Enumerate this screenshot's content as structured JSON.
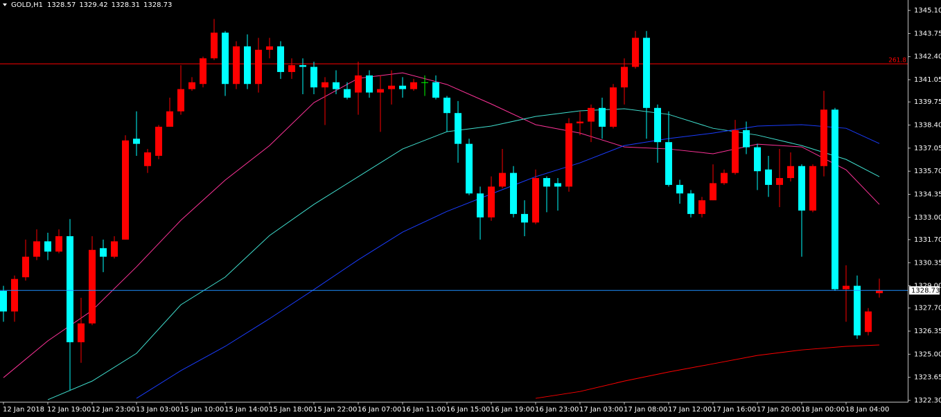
{
  "chart_data": {
    "type": "candlestick",
    "symbol": "GOLD,H1",
    "categories": [
      "12 Jan 2018",
      null,
      null,
      null,
      "12 Jan 19:00",
      null,
      null,
      null,
      "12 Jan 23:00",
      null,
      null,
      null,
      "13 Jan 03:00",
      null,
      null,
      null,
      "15 Jan 10:00",
      null,
      null,
      null,
      "15 Jan 14:00",
      null,
      null,
      null,
      "15 Jan 18:00",
      null,
      null,
      null,
      "15 Jan 22:00",
      null,
      null,
      null,
      "16 Jan 07:00",
      null,
      null,
      null,
      "16 Jan 11:00",
      null,
      null,
      null,
      "16 Jan 15:00",
      null,
      null,
      null,
      "16 Jan 19:00",
      null,
      null,
      null,
      "16 Jan 23:00",
      null,
      null,
      null,
      "17 Jan 03:00",
      null,
      null,
      null,
      "17 Jan 08:00",
      null,
      null,
      null,
      "17 Jan 12:00",
      null,
      null,
      null,
      "17 Jan 16:00",
      null,
      null,
      null,
      "17 Jan 20:00",
      null,
      null,
      null,
      "18 Jan 00:00",
      null,
      null,
      null,
      "18 Jan 04:00",
      null,
      null,
      null
    ],
    "open": [
      1328.7,
      1327.5,
      1329.5,
      1330.7,
      1331.6,
      1331.0,
      1331.9,
      1325.7,
      1326.8,
      1331.2,
      1330.7,
      1331.7,
      1337.6,
      1336.0,
      1336.6,
      1338.3,
      1339.2,
      1340.5,
      1340.8,
      1342.3,
      1343.8,
      1340.8,
      1343.0,
      1340.8,
      1342.8,
      1343.0,
      1341.5,
      1341.9,
      1341.8,
      1340.6,
      1340.9,
      1340.5,
      1340.3,
      1341.3,
      1340.3,
      1340.5,
      1340.7,
      1340.5,
      1340.9,
      1340.9,
      1340.0,
      1339.1,
      1337.3,
      1334.4,
      1333.0,
      1334.8,
      1335.6,
      1333.2,
      1332.7,
      1335.3,
      1335.0,
      1334.8,
      1338.5,
      1338.6,
      1339.4,
      1338.3,
      1340.6,
      1341.8,
      1343.5,
      1339.4,
      1337.4,
      1334.9,
      1334.4,
      1333.2,
      1334.0,
      1335.0,
      1335.6,
      1338.1,
      1337.1,
      1335.8,
      1334.9,
      1335.3,
      1336.0,
      1333.4,
      1336.0,
      1339.3,
      1328.8,
      1329.0,
      1326.3,
      1328.57
    ],
    "high": [
      1329.0,
      1329.6,
      1331.7,
      1332.3,
      1332.1,
      1332.3,
      1332.9,
      1328.3,
      1331.9,
      1331.7,
      1331.9,
      1337.8,
      1339.2,
      1337.0,
      1338.4,
      1340.0,
      1341.9,
      1341.2,
      1342.4,
      1344.6,
      1343.9,
      1343.3,
      1343.7,
      1343.5,
      1343.5,
      1343.3,
      1342.3,
      1342.3,
      1342.1,
      1341.2,
      1341.6,
      1340.9,
      1342.1,
      1341.6,
      1341.3,
      1341.6,
      1341.2,
      1341.1,
      1341.3,
      1341.3,
      1340.1,
      1339.8,
      1337.6,
      1334.8,
      1335.4,
      1337.0,
      1336.0,
      1334.0,
      1335.8,
      1335.4,
      1335.3,
      1338.8,
      1339.2,
      1339.6,
      1340.0,
      1340.8,
      1342.3,
      1343.9,
      1343.9,
      1339.6,
      1339.2,
      1335.2,
      1334.6,
      1334.2,
      1336.1,
      1335.8,
      1338.7,
      1338.6,
      1337.3,
      1336.6,
      1337.0,
      1336.8,
      1336.1,
      1336.1,
      1340.4,
      1339.4,
      1330.2,
      1329.6,
      1327.7,
      1329.42
    ],
    "low": [
      1326.9,
      1326.9,
      1329.3,
      1330.5,
      1330.5,
      1330.9,
      1322.9,
      1324.5,
      1326.7,
      1329.8,
      1330.6,
      1331.7,
      1336.6,
      1335.6,
      1336.4,
      1338.3,
      1339.0,
      1340.4,
      1340.6,
      1342.2,
      1340.1,
      1340.5,
      1340.5,
      1340.3,
      1342.3,
      1341.1,
      1341.1,
      1340.2,
      1340.2,
      1338.4,
      1340.2,
      1339.9,
      1339.0,
      1340.0,
      1338.0,
      1339.6,
      1340.0,
      1340.4,
      1340.1,
      1339.9,
      1338.0,
      1336.2,
      1334.3,
      1331.7,
      1332.8,
      1334.7,
      1333.0,
      1331.9,
      1332.6,
      1333.3,
      1333.4,
      1334.5,
      1337.8,
      1337.4,
      1337.6,
      1338.2,
      1339.6,
      1341.7,
      1337.6,
      1336.2,
      1334.8,
      1333.8,
      1333.0,
      1333.0,
      1334.0,
      1334.9,
      1335.5,
      1336.7,
      1334.6,
      1334.2,
      1333.6,
      1335.1,
      1330.7,
      1333.3,
      1335.4,
      1328.7,
      1326.9,
      1325.9,
      1326.1,
      1328.31
    ],
    "close": [
      1327.5,
      1329.4,
      1330.7,
      1331.6,
      1331.0,
      1331.9,
      1325.7,
      1326.8,
      1331.1,
      1330.7,
      1331.6,
      1337.5,
      1337.3,
      1336.8,
      1338.3,
      1339.2,
      1340.5,
      1340.9,
      1342.3,
      1343.8,
      1340.8,
      1343.0,
      1340.8,
      1342.8,
      1343.0,
      1341.5,
      1341.9,
      1341.8,
      1340.6,
      1340.9,
      1340.5,
      1340.0,
      1341.3,
      1340.3,
      1340.5,
      1340.7,
      1340.5,
      1340.9,
      1340.9,
      1340.0,
      1339.1,
      1337.3,
      1334.4,
      1333.0,
      1334.8,
      1335.6,
      1333.2,
      1332.7,
      1335.3,
      1334.8,
      1334.8,
      1338.5,
      1338.6,
      1339.4,
      1338.3,
      1340.6,
      1341.8,
      1343.5,
      1339.4,
      1337.4,
      1334.9,
      1334.4,
      1333.2,
      1334.0,
      1335.0,
      1335.6,
      1338.1,
      1337.1,
      1335.7,
      1334.9,
      1335.3,
      1336.0,
      1333.4,
      1336.0,
      1339.3,
      1328.8,
      1329.0,
      1326.1,
      1327.5,
      1328.73
    ],
    "up_color": "#ff0000",
    "down_color": "#00ffff",
    "doji_color": "#00ff00",
    "bid_color": "#1e90ff",
    "ylim": [
      1322.22,
      1345.71
    ],
    "yticks": [
      {
        "value": 1345.1,
        "label": "1345.10"
      },
      1343.75,
      {
        "value": 1342.4,
        "label": "1342.40"
      },
      1341.05,
      1339.75,
      {
        "value": 1338.4,
        "label": "1338.40"
      },
      1337.05,
      {
        "value": 1335.7,
        "label": "1335.70"
      },
      1334.35,
      {
        "value": 1333,
        "label": "1333.00"
      },
      {
        "value": 1331.7,
        "label": "1331.70"
      },
      1330.35,
      {
        "value": 1329,
        "label": "1329.00"
      },
      {
        "value": 1327.7,
        "label": "1327.70"
      },
      1326.35,
      {
        "value": 1325,
        "label": "1325.00"
      },
      1323.65,
      {
        "value": 1322.3,
        "label": "1322.30"
      }
    ],
    "levels": [
      {
        "value": 1341.98,
        "label": "261.8",
        "color": "#ff0000"
      }
    ],
    "lines": [
      {
        "color": "#ff3399",
        "x": [
          0,
          4,
          8,
          12,
          16,
          20,
          24,
          28,
          32,
          36,
          40,
          44,
          48,
          52,
          56,
          60,
          64,
          68,
          72,
          76,
          79
        ],
        "values": [
          1323.63,
          1325.78,
          1327.56,
          1330.11,
          1332.83,
          1335.18,
          1337.2,
          1339.71,
          1341.13,
          1341.45,
          1340.77,
          1339.63,
          1338.42,
          1337.93,
          1337.12,
          1337.0,
          1336.72,
          1337.28,
          1337.12,
          1335.78,
          1333.76
        ]
      },
      {
        "color": "#40e0d0",
        "x": [
          0,
          4,
          8,
          12,
          16,
          20,
          24,
          28,
          32,
          36,
          40,
          44,
          48,
          52,
          56,
          60,
          64,
          68,
          72,
          76,
          79
        ],
        "values": [
          null,
          1322.34,
          1323.43,
          1325.05,
          1327.89,
          1329.51,
          1331.94,
          1333.76,
          1335.38,
          1337.0,
          1338.01,
          1338.34,
          1338.9,
          1339.23,
          1339.35,
          1339.02,
          1338.21,
          1337.81,
          1337.2,
          1336.39,
          1335.38
        ]
      },
      {
        "color": "#1a3cff",
        "x": [
          0,
          4,
          8,
          12,
          16,
          20,
          24,
          28,
          32,
          36,
          40,
          44,
          48,
          52,
          56,
          60,
          64,
          68,
          72,
          76,
          79
        ],
        "values": [
          null,
          null,
          null,
          1322.42,
          1324.04,
          1325.46,
          1327.08,
          1328.78,
          1330.52,
          1332.14,
          1333.35,
          1334.37,
          1335.38,
          1336.19,
          1337.2,
          1337.61,
          1337.93,
          1338.34,
          1338.42,
          1338.21,
          1337.32
        ]
      },
      {
        "color": "#ff0000",
        "x": [
          0,
          4,
          8,
          12,
          16,
          20,
          24,
          28,
          32,
          36,
          40,
          44,
          48,
          52,
          56,
          60,
          64,
          68,
          72,
          76,
          79
        ],
        "values": [
          null,
          null,
          null,
          null,
          null,
          null,
          null,
          null,
          null,
          null,
          null,
          null,
          1322.42,
          1322.82,
          1323.43,
          1323.96,
          1324.44,
          1324.93,
          1325.25,
          1325.46,
          1325.54
        ]
      }
    ]
  }
}
